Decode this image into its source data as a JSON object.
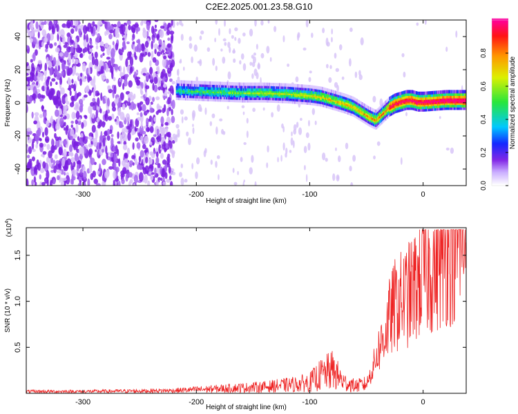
{
  "title": "C2E2.2025.001.23.58.G10",
  "chart_data": [
    {
      "type": "heatmap",
      "xlabel": "Height of straight line (km)",
      "ylabel": "Frequency (Hz)",
      "xlim": [
        -350,
        38
      ],
      "ylim": [
        -50,
        50
      ],
      "xticks": [
        -300,
        -200,
        -100,
        0
      ],
      "yticks": [
        -40,
        -20,
        0,
        20,
        40
      ],
      "ridge": {
        "x": [
          -218,
          -200,
          -180,
          -160,
          -140,
          -120,
          -100,
          -90,
          -80,
          -70,
          -62,
          -55,
          -48,
          -42,
          -36,
          -30,
          -25,
          -20,
          -15,
          -10,
          -5,
          0,
          10,
          20,
          38
        ],
        "freq": [
          8,
          7.5,
          7,
          6.5,
          6.5,
          6,
          5,
          4,
          2,
          0,
          -2,
          -5,
          -8,
          -10,
          -6,
          -2,
          0,
          1,
          2,
          2,
          1,
          1,
          1.5,
          2,
          2
        ]
      },
      "colorbar": {
        "label": "Normalized spectral amplitude",
        "ticks": [
          0.0,
          0.2,
          0.4,
          0.6,
          0.8
        ],
        "range": [
          0,
          1
        ]
      }
    },
    {
      "type": "line",
      "xlabel": "Height of straight line (km)",
      "ylabel": "SNR (10 * v/v)",
      "multiplier": "(x10",
      "multiplier_exp": "4",
      "multiplier_close": ")",
      "xlim": [
        -350,
        38
      ],
      "ylim": [
        0,
        1.8
      ],
      "xticks": [
        -300,
        -200,
        -100,
        0
      ],
      "yticks": [
        0.5,
        1.0,
        1.5
      ],
      "ytick_labels": [
        "0.5",
        "1.0",
        "1.5"
      ],
      "series": [
        {
          "color": "#ee2222",
          "x": [
            -350,
            -300,
            -250,
            -220,
            -200,
            -180,
            -160,
            -140,
            -120,
            -110,
            -100,
            -90,
            -80,
            -70,
            -60,
            -50,
            -45,
            -40,
            -35,
            -30,
            -25,
            -20,
            -15,
            -10,
            -5,
            0,
            10,
            20,
            30,
            38
          ],
          "y": [
            0.02,
            0.02,
            0.025,
            0.03,
            0.04,
            0.05,
            0.06,
            0.07,
            0.09,
            0.1,
            0.12,
            0.2,
            0.25,
            0.12,
            0.08,
            0.1,
            0.25,
            0.45,
            0.6,
            0.8,
            0.95,
            1.0,
            1.05,
            1.1,
            1.2,
            1.3,
            1.4,
            1.55,
            1.65,
            1.75
          ]
        }
      ]
    }
  ]
}
